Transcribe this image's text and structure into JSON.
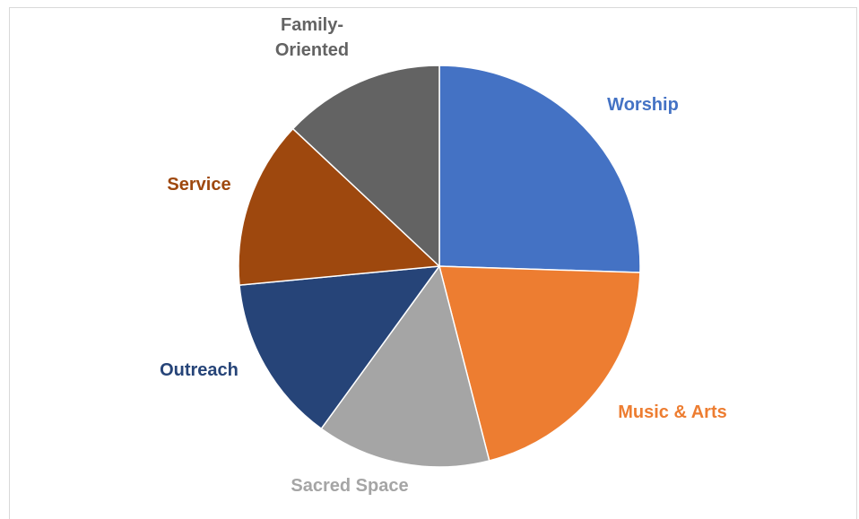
{
  "chart_data": {
    "type": "pie",
    "title": "",
    "legend": "none",
    "start_angle_deg": 0,
    "direction": "clockwise",
    "slices": [
      {
        "label": "Worship",
        "label_lines": [
          "Worship"
        ],
        "value": 25.5,
        "color": "#4472C4"
      },
      {
        "label": "Music & Arts",
        "label_lines": [
          "Music & Arts"
        ],
        "value": 20.5,
        "color": "#ED7D31"
      },
      {
        "label": "Sacred Space",
        "label_lines": [
          "Sacred Space"
        ],
        "value": 14.0,
        "color": "#A5A5A5"
      },
      {
        "label": "Outreach",
        "label_lines": [
          "Outreach"
        ],
        "value": 13.5,
        "color": "#264478"
      },
      {
        "label": "Service",
        "label_lines": [
          "Service"
        ],
        "value": 13.5,
        "color": "#9E480E"
      },
      {
        "label": "Family-Oriented",
        "label_lines": [
          "Family-",
          "Oriented"
        ],
        "value": 13.0,
        "color": "#636363"
      }
    ]
  }
}
